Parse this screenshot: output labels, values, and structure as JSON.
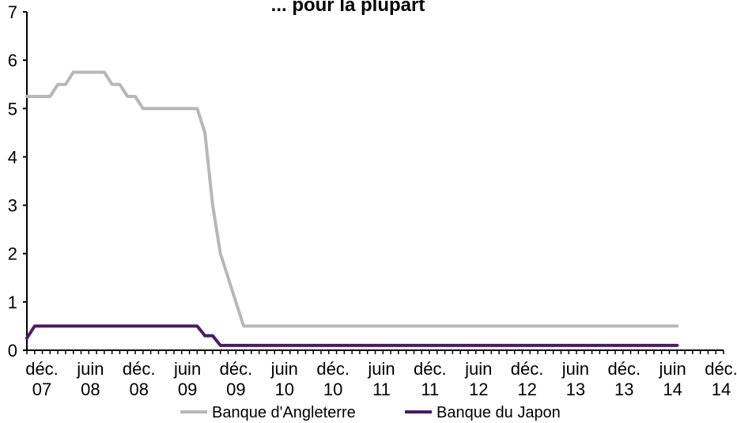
{
  "chart_data": {
    "type": "line",
    "title": "... pour la plupart",
    "ylim": [
      0,
      7
    ],
    "yticks": [
      0,
      1,
      2,
      3,
      4,
      5,
      6,
      7
    ],
    "grid": false,
    "legend_position": "bottom",
    "x_tick_labels": [
      {
        "line1": "déc.",
        "line2": "07"
      },
      {
        "line1": "juin",
        "line2": "08"
      },
      {
        "line1": "déc.",
        "line2": "08"
      },
      {
        "line1": "juin",
        "line2": "09"
      },
      {
        "line1": "déc.",
        "line2": "09"
      },
      {
        "line1": "juin",
        "line2": "10"
      },
      {
        "line1": "déc.",
        "line2": "10"
      },
      {
        "line1": "juin",
        "line2": "11"
      },
      {
        "line1": "déc.",
        "line2": "11"
      },
      {
        "line1": "juin",
        "line2": "12"
      },
      {
        "line1": "déc.",
        "line2": "12"
      },
      {
        "line1": "juin",
        "line2": "13"
      },
      {
        "line1": "déc.",
        "line2": "13"
      },
      {
        "line1": "juin",
        "line2": "14"
      },
      {
        "line1": "déc.",
        "line2": "14"
      }
    ],
    "x": [
      "2007-12",
      "2008-01",
      "2008-02",
      "2008-03",
      "2008-04",
      "2008-05",
      "2008-06",
      "2008-07",
      "2008-08",
      "2008-09",
      "2008-10",
      "2008-11",
      "2008-12",
      "2009-01",
      "2009-02",
      "2009-03",
      "2009-04",
      "2009-05",
      "2009-06",
      "2009-07",
      "2009-08",
      "2009-09",
      "2009-10",
      "2009-11",
      "2009-12",
      "2010-01",
      "2010-02",
      "2010-03",
      "2010-04",
      "2010-05",
      "2010-06",
      "2010-07",
      "2010-08",
      "2010-09",
      "2010-10",
      "2010-11",
      "2010-12",
      "2011-01",
      "2011-02",
      "2011-03",
      "2011-04",
      "2011-05",
      "2011-06",
      "2011-07",
      "2011-08",
      "2011-09",
      "2011-10",
      "2011-11",
      "2011-12",
      "2012-01",
      "2012-02",
      "2012-03",
      "2012-04",
      "2012-05",
      "2012-06",
      "2012-07",
      "2012-08",
      "2012-09",
      "2012-10",
      "2012-11",
      "2012-12",
      "2013-01",
      "2013-02",
      "2013-03",
      "2013-04",
      "2013-05",
      "2013-06",
      "2013-07",
      "2013-08",
      "2013-09",
      "2013-10",
      "2013-11",
      "2013-12",
      "2014-01",
      "2014-02",
      "2014-03",
      "2014-04",
      "2014-05",
      "2014-06",
      "2014-07",
      "2014-08",
      "2014-09",
      "2014-10",
      "2014-11",
      "2014-12"
    ],
    "series": [
      {
        "name": "Banque d'Angleterre",
        "color": "#b7b7b7",
        "values": [
          5.25,
          5.25,
          5.25,
          5.25,
          5.5,
          5.5,
          5.75,
          5.75,
          5.75,
          5.75,
          5.75,
          5.5,
          5.5,
          5.25,
          5.25,
          5.0,
          5.0,
          5.0,
          5.0,
          5.0,
          5.0,
          5.0,
          5.0,
          4.5,
          3.0,
          2.0,
          1.5,
          1.0,
          0.5,
          0.5,
          0.5,
          0.5,
          0.5,
          0.5,
          0.5,
          0.5,
          0.5,
          0.5,
          0.5,
          0.5,
          0.5,
          0.5,
          0.5,
          0.5,
          0.5,
          0.5,
          0.5,
          0.5,
          0.5,
          0.5,
          0.5,
          0.5,
          0.5,
          0.5,
          0.5,
          0.5,
          0.5,
          0.5,
          0.5,
          0.5,
          0.5,
          0.5,
          0.5,
          0.5,
          0.5,
          0.5,
          0.5,
          0.5,
          0.5,
          0.5,
          0.5,
          0.5,
          0.5,
          0.5,
          0.5,
          0.5,
          0.5,
          0.5,
          0.5,
          0.5,
          0.5,
          0.5,
          0.5,
          0.5,
          0.5
        ]
      },
      {
        "name": "Banque du Japon",
        "color": "#4b1b63",
        "values": [
          0.25,
          0.5,
          0.5,
          0.5,
          0.5,
          0.5,
          0.5,
          0.5,
          0.5,
          0.5,
          0.5,
          0.5,
          0.5,
          0.5,
          0.5,
          0.5,
          0.5,
          0.5,
          0.5,
          0.5,
          0.5,
          0.5,
          0.5,
          0.3,
          0.3,
          0.1,
          0.1,
          0.1,
          0.1,
          0.1,
          0.1,
          0.1,
          0.1,
          0.1,
          0.1,
          0.1,
          0.1,
          0.1,
          0.1,
          0.1,
          0.1,
          0.1,
          0.1,
          0.1,
          0.1,
          0.1,
          0.1,
          0.1,
          0.1,
          0.1,
          0.1,
          0.1,
          0.1,
          0.1,
          0.1,
          0.1,
          0.1,
          0.1,
          0.1,
          0.1,
          0.1,
          0.1,
          0.1,
          0.1,
          0.1,
          0.1,
          0.1,
          0.1,
          0.1,
          0.1,
          0.1,
          0.1,
          0.1,
          0.1,
          0.1,
          0.1,
          0.1,
          0.1,
          0.1,
          0.1,
          0.1,
          0.1,
          0.1,
          0.1,
          0.1
        ]
      }
    ]
  }
}
